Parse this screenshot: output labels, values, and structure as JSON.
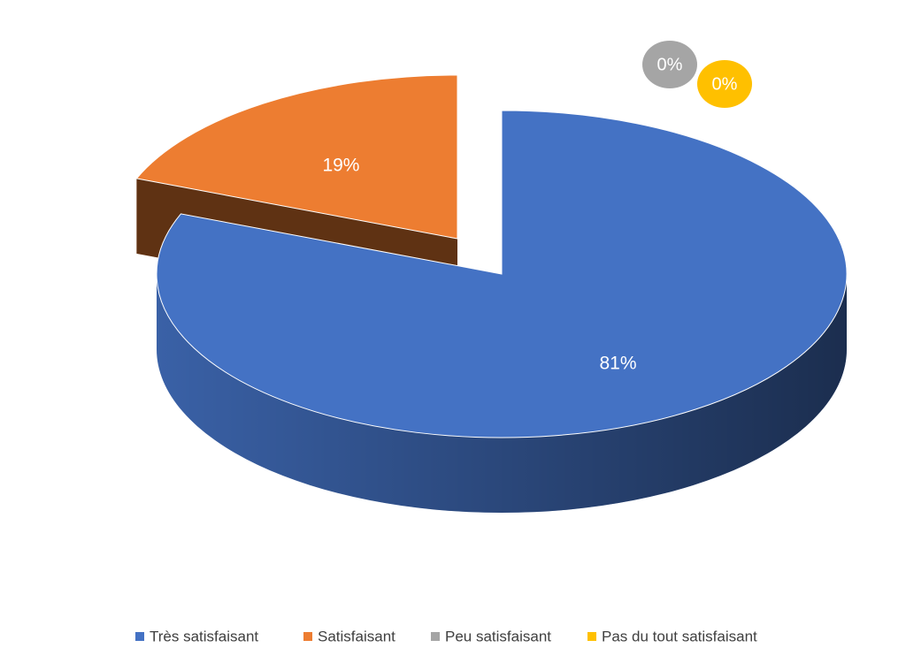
{
  "chart_data": {
    "type": "pie",
    "categories": [
      "Très satisfaisant",
      "Satisfaisant",
      "Peu satisfaisant",
      "Pas du tout satisfaisant"
    ],
    "values": [
      81,
      19,
      0,
      0
    ],
    "value_labels": [
      "81%",
      "19%",
      "0%",
      "0%"
    ],
    "colors": [
      "#4472c4",
      "#ed7d31",
      "#a5a5a5",
      "#ffc000"
    ],
    "legend": "bottom"
  }
}
